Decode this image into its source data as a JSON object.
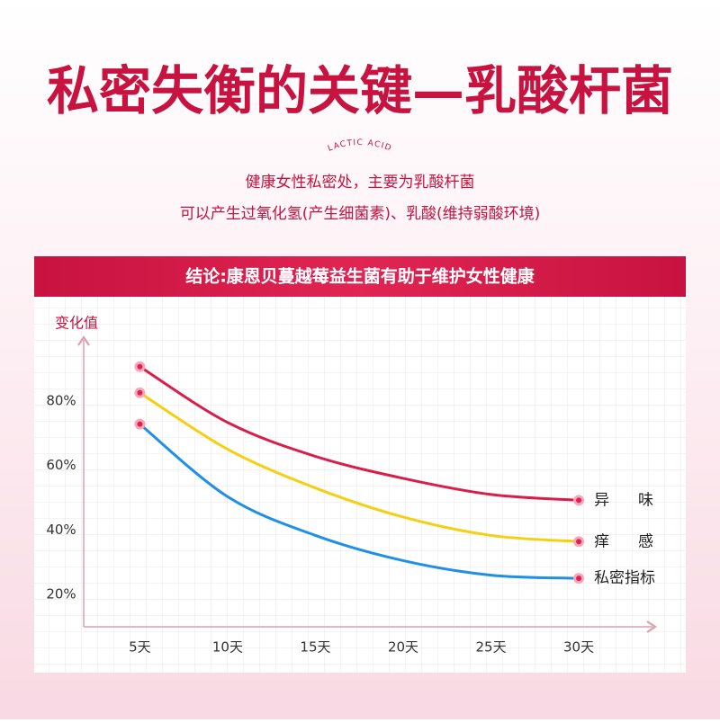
{
  "chart_data": {
    "type": "line",
    "title": "私密失衡的关键—乳酸杆菌",
    "subtitle_en": "LACTIC ACID",
    "notes": [
      "健康女性私密处，主要为乳酸杆菌",
      "可以产生过氧化氢(产生细菌素)、乳酸(维持弱酸环境)"
    ],
    "conclusion": "结论:康恩贝蔓越莓益生菌有助于维护女性健康",
    "ylabel": "变化值",
    "x": [
      5,
      10,
      15,
      20,
      25,
      30
    ],
    "xlim": [
      1.8,
      34.2
    ],
    "xticks": [
      {
        "value": 5,
        "label": "5天"
      },
      {
        "value": 10,
        "label": "10天"
      },
      {
        "value": 15,
        "label": "15天"
      },
      {
        "value": 20,
        "label": "20天"
      },
      {
        "value": 25,
        "label": "25天"
      },
      {
        "value": 30,
        "label": "30天"
      }
    ],
    "ylim": [
      10,
      100
    ],
    "yticks": [
      {
        "value": 20,
        "label": "20%"
      },
      {
        "value": 40,
        "label": "40%"
      },
      {
        "value": 60,
        "label": "60%"
      },
      {
        "value": 80,
        "label": "80%"
      }
    ],
    "series": [
      {
        "name": "异味",
        "color": "#d81e4a",
        "values": [
          90.6,
          73.3,
          62.8,
          56,
          51,
          49.2
        ]
      },
      {
        "name": "痒感",
        "color": "#f5cf12",
        "values": [
          82.5,
          65,
          53,
          44,
          38.3,
          36.4
        ]
      },
      {
        "name": "私密指标",
        "color": "#1e90e6",
        "values": [
          72.8,
          50.3,
          38.3,
          30.5,
          26,
          25
        ]
      }
    ]
  }
}
